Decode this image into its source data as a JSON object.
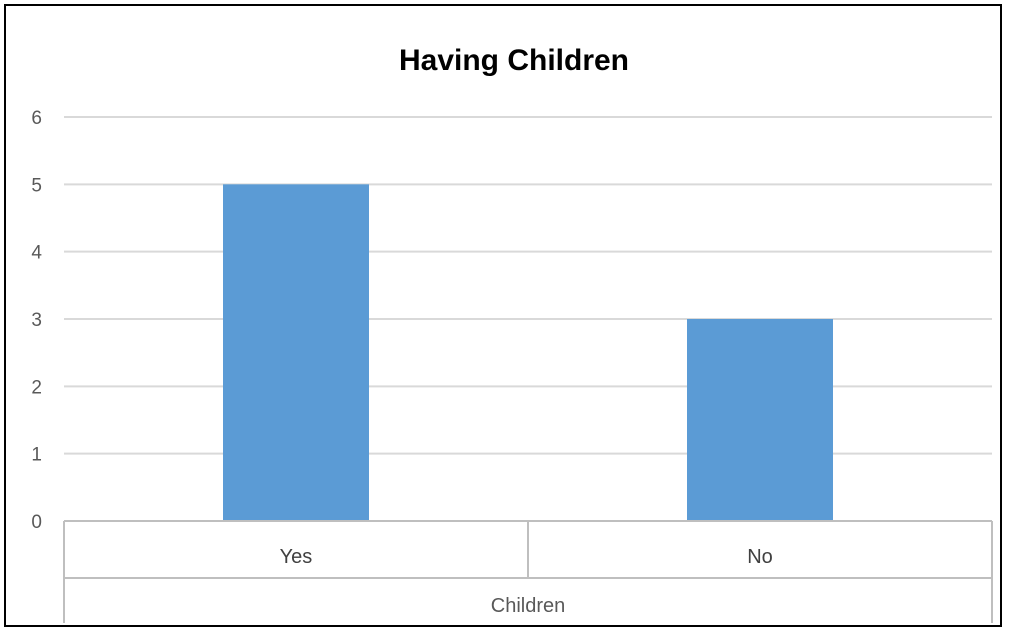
{
  "chart_data": {
    "type": "bar",
    "title": "Having Children",
    "xlabel": "Children",
    "ylabel": "",
    "categories": [
      "Yes",
      "No"
    ],
    "values": [
      5,
      3
    ],
    "ylim": [
      0,
      6
    ],
    "yticks": [
      "0",
      "1",
      "2",
      "3",
      "4",
      "5",
      "6"
    ],
    "grid": true,
    "legend": "none",
    "colors": {
      "bar": "#5B9BD5",
      "grid": "#D9D9D9",
      "axis": "#BFBFBF"
    }
  }
}
